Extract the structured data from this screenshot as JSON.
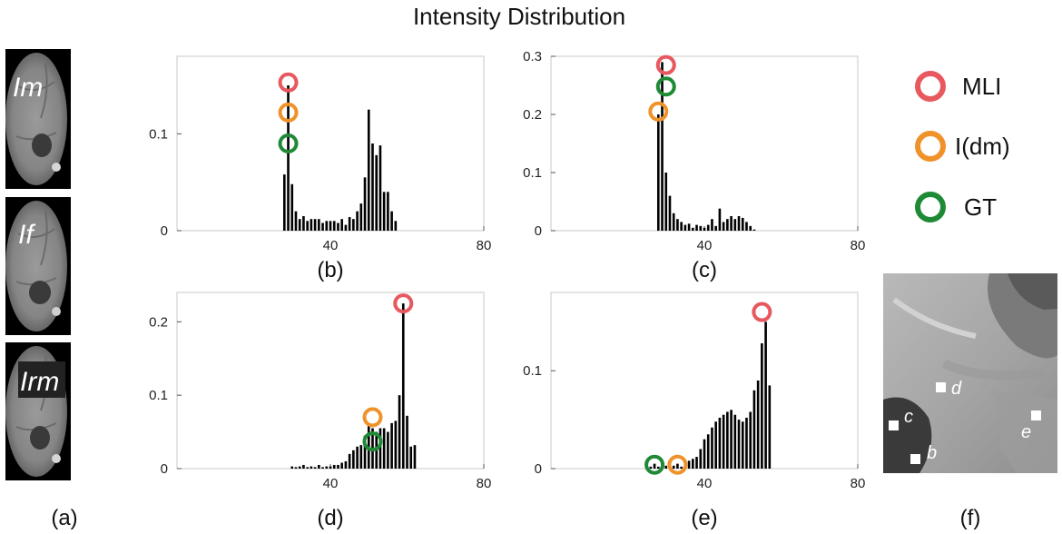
{
  "title": "Intensity Distribution",
  "legend": [
    {
      "label": "MLI",
      "color": "#e8585f"
    },
    {
      "label": "I(dm)",
      "color": "#f0922a"
    },
    {
      "label": "GT",
      "color": "#1f8a35"
    }
  ],
  "brain_labels": [
    "Im",
    "If",
    "Irm"
  ],
  "panel_a_caption": "(a)",
  "panel_f": {
    "caption": "(f)",
    "points": [
      "d",
      "c",
      "e",
      "b"
    ]
  },
  "chart_data": [
    {
      "type": "bar",
      "caption": "(b)",
      "xlim": [
        0,
        80
      ],
      "ylim": [
        0,
        0.18
      ],
      "xticks": [
        40,
        80
      ],
      "yticks": [
        0,
        0.1
      ],
      "ytick_labels": [
        "0",
        "0.1"
      ],
      "x": [
        28,
        29,
        30,
        31,
        32,
        33,
        34,
        35,
        36,
        37,
        38,
        39,
        40,
        41,
        42,
        43,
        44,
        45,
        46,
        47,
        48,
        49,
        50,
        51,
        52,
        53,
        54,
        55,
        56,
        57
      ],
      "values": [
        0.058,
        0.15,
        0.048,
        0.02,
        0.012,
        0.015,
        0.01,
        0.012,
        0.012,
        0.012,
        0.008,
        0.01,
        0.01,
        0.01,
        0.008,
        0.012,
        0.006,
        0.014,
        0.012,
        0.02,
        0.028,
        0.055,
        0.125,
        0.09,
        0.078,
        0.088,
        0.04,
        0.04,
        0.02,
        0.01
      ],
      "markers": [
        {
          "series": "MLI",
          "x": 29,
          "y": 0.153
        },
        {
          "series": "I(dm)",
          "x": 29,
          "y": 0.122
        },
        {
          "series": "GT",
          "x": 29,
          "y": 0.09
        }
      ]
    },
    {
      "type": "bar",
      "caption": "(c)",
      "xlim": [
        0,
        80
      ],
      "ylim": [
        0,
        0.3
      ],
      "xticks": [
        40,
        80
      ],
      "yticks": [
        0,
        0.1,
        0.2,
        0.3
      ],
      "ytick_labels": [
        "0",
        "0.1",
        "0.2",
        "0.3"
      ],
      "x": [
        28,
        29,
        30,
        31,
        32,
        33,
        34,
        35,
        36,
        37,
        38,
        39,
        40,
        41,
        42,
        43,
        44,
        45,
        46,
        47,
        48,
        49,
        50,
        51,
        52,
        53
      ],
      "values": [
        0.2,
        0.29,
        0.1,
        0.06,
        0.03,
        0.02,
        0.015,
        0.01,
        0.012,
        0.005,
        0.01,
        0.008,
        0.005,
        0.01,
        0.02,
        0.008,
        0.038,
        0.015,
        0.02,
        0.025,
        0.02,
        0.025,
        0.022,
        0.015,
        0.008,
        0.002
      ],
      "markers": [
        {
          "series": "MLI",
          "x": 30,
          "y": 0.285
        },
        {
          "series": "GT",
          "x": 30,
          "y": 0.248
        },
        {
          "series": "I(dm)",
          "x": 28,
          "y": 0.205
        }
      ]
    },
    {
      "type": "bar",
      "caption": "(d)",
      "xlim": [
        0,
        80
      ],
      "ylim": [
        0,
        0.24
      ],
      "xticks": [
        40,
        80
      ],
      "yticks": [
        0,
        0.1,
        0.2
      ],
      "ytick_labels": [
        "0",
        "0.1",
        "0.2"
      ],
      "x": [
        30,
        31,
        32,
        33,
        34,
        35,
        36,
        37,
        38,
        39,
        40,
        41,
        42,
        43,
        44,
        45,
        46,
        47,
        48,
        49,
        50,
        51,
        52,
        53,
        54,
        55,
        56,
        57,
        58,
        59,
        60,
        61,
        62
      ],
      "values": [
        0.003,
        0.002,
        0.003,
        0.005,
        0.002,
        0.003,
        0.002,
        0.005,
        0.002,
        0.003,
        0.003,
        0.005,
        0.005,
        0.008,
        0.01,
        0.02,
        0.025,
        0.03,
        0.032,
        0.045,
        0.058,
        0.055,
        0.05,
        0.055,
        0.055,
        0.05,
        0.062,
        0.065,
        0.1,
        0.225,
        0.072,
        0.03,
        0.032
      ],
      "markers": [
        {
          "series": "MLI",
          "x": 59,
          "y": 0.225
        },
        {
          "series": "I(dm)",
          "x": 51,
          "y": 0.07
        },
        {
          "series": "GT",
          "x": 51,
          "y": 0.037
        }
      ]
    },
    {
      "type": "bar",
      "caption": "(e)",
      "xlim": [
        0,
        80
      ],
      "ylim": [
        0,
        0.18
      ],
      "xticks": [
        40,
        80
      ],
      "yticks": [
        0,
        0.1
      ],
      "ytick_labels": [
        "0",
        "0.1"
      ],
      "x": [
        26,
        27,
        28,
        29,
        30,
        31,
        32,
        33,
        34,
        35,
        36,
        37,
        38,
        39,
        40,
        41,
        42,
        43,
        44,
        45,
        46,
        47,
        48,
        49,
        50,
        51,
        52,
        53,
        54,
        55,
        56,
        57
      ],
      "values": [
        0.002,
        0.005,
        0.002,
        0.006,
        0.003,
        0.004,
        0.003,
        0.005,
        0.002,
        0.006,
        0.008,
        0.01,
        0.012,
        0.02,
        0.03,
        0.035,
        0.042,
        0.048,
        0.052,
        0.055,
        0.058,
        0.06,
        0.055,
        0.05,
        0.048,
        0.052,
        0.058,
        0.08,
        0.09,
        0.128,
        0.15,
        0.085
      ],
      "markers": [
        {
          "series": "MLI",
          "x": 55,
          "y": 0.16
        },
        {
          "series": "GT",
          "x": 27,
          "y": 0.004
        },
        {
          "series": "I(dm)",
          "x": 33,
          "y": 0.004
        }
      ]
    }
  ]
}
